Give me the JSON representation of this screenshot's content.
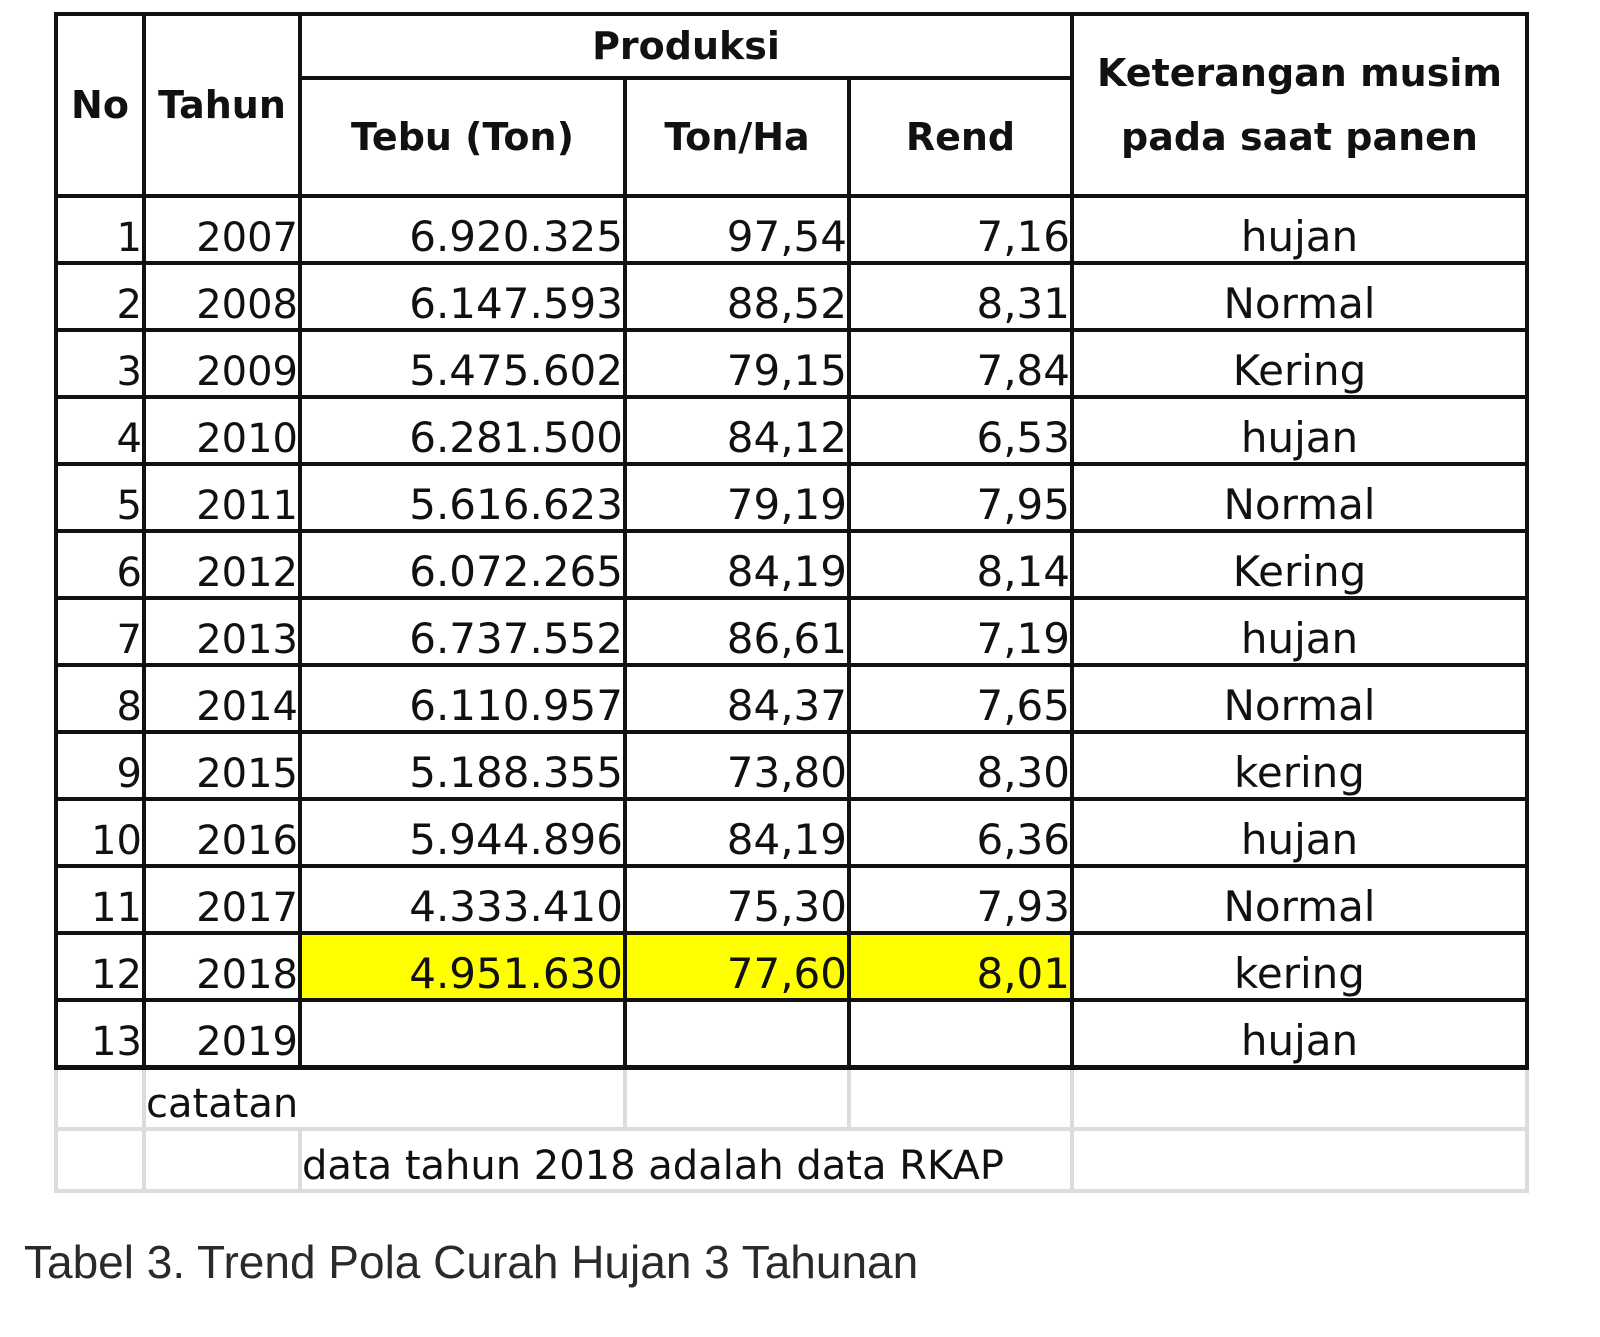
{
  "table": {
    "headers": {
      "no": "No",
      "tahun": "Tahun",
      "produksi": "Produksi",
      "tebu": "Tebu (Ton)",
      "ton_ha": "Ton/Ha",
      "rend": "Rend",
      "keterangan_line1": "Keterangan musim",
      "keterangan_line2": "pada saat panen"
    },
    "rows": [
      {
        "no": "1",
        "tahun": "2007",
        "tebu": "6.920.325",
        "ton_ha": "97,54",
        "rend": "7,16",
        "keterangan": "hujan"
      },
      {
        "no": "2",
        "tahun": "2008",
        "tebu": "6.147.593",
        "ton_ha": "88,52",
        "rend": "8,31",
        "keterangan": "Normal"
      },
      {
        "no": "3",
        "tahun": "2009",
        "tebu": "5.475.602",
        "ton_ha": "79,15",
        "rend": "7,84",
        "keterangan": "Kering"
      },
      {
        "no": "4",
        "tahun": "2010",
        "tebu": "6.281.500",
        "ton_ha": "84,12",
        "rend": "6,53",
        "keterangan": "hujan"
      },
      {
        "no": "5",
        "tahun": "2011",
        "tebu": "5.616.623",
        "ton_ha": "79,19",
        "rend": "7,95",
        "keterangan": "Normal"
      },
      {
        "no": "6",
        "tahun": "2012",
        "tebu": "6.072.265",
        "ton_ha": "84,19",
        "rend": "8,14",
        "keterangan": "Kering"
      },
      {
        "no": "7",
        "tahun": "2013",
        "tebu": "6.737.552",
        "ton_ha": "86,61",
        "rend": "7,19",
        "keterangan": "hujan"
      },
      {
        "no": "8",
        "tahun": "2014",
        "tebu": "6.110.957",
        "ton_ha": "84,37",
        "rend": "7,65",
        "keterangan": "Normal"
      },
      {
        "no": "9",
        "tahun": "2015",
        "tebu": "5.188.355",
        "ton_ha": "73,80",
        "rend": "8,30",
        "keterangan": "kering"
      },
      {
        "no": "10",
        "tahun": "2016",
        "tebu": "5.944.896",
        "ton_ha": "84,19",
        "rend": "6,36",
        "keterangan": "hujan"
      },
      {
        "no": "11",
        "tahun": "2017",
        "tebu": "4.333.410",
        "ton_ha": "75,30",
        "rend": "7,93",
        "keterangan": "Normal"
      },
      {
        "no": "12",
        "tahun": "2018",
        "tebu": "4.951.630",
        "ton_ha": "77,60",
        "rend": "8,01",
        "keterangan": "kering",
        "highlight": true
      },
      {
        "no": "13",
        "tahun": "2019",
        "tebu": "",
        "ton_ha": "",
        "rend": "",
        "keterangan": "hujan"
      }
    ],
    "notes": {
      "label": "catatan",
      "text": "data tahun 2018 adalah data RKAP"
    },
    "highlight_color": "#ffff00"
  },
  "caption": "Tabel 3. Trend Pola Curah Hujan 3 Tahunan"
}
